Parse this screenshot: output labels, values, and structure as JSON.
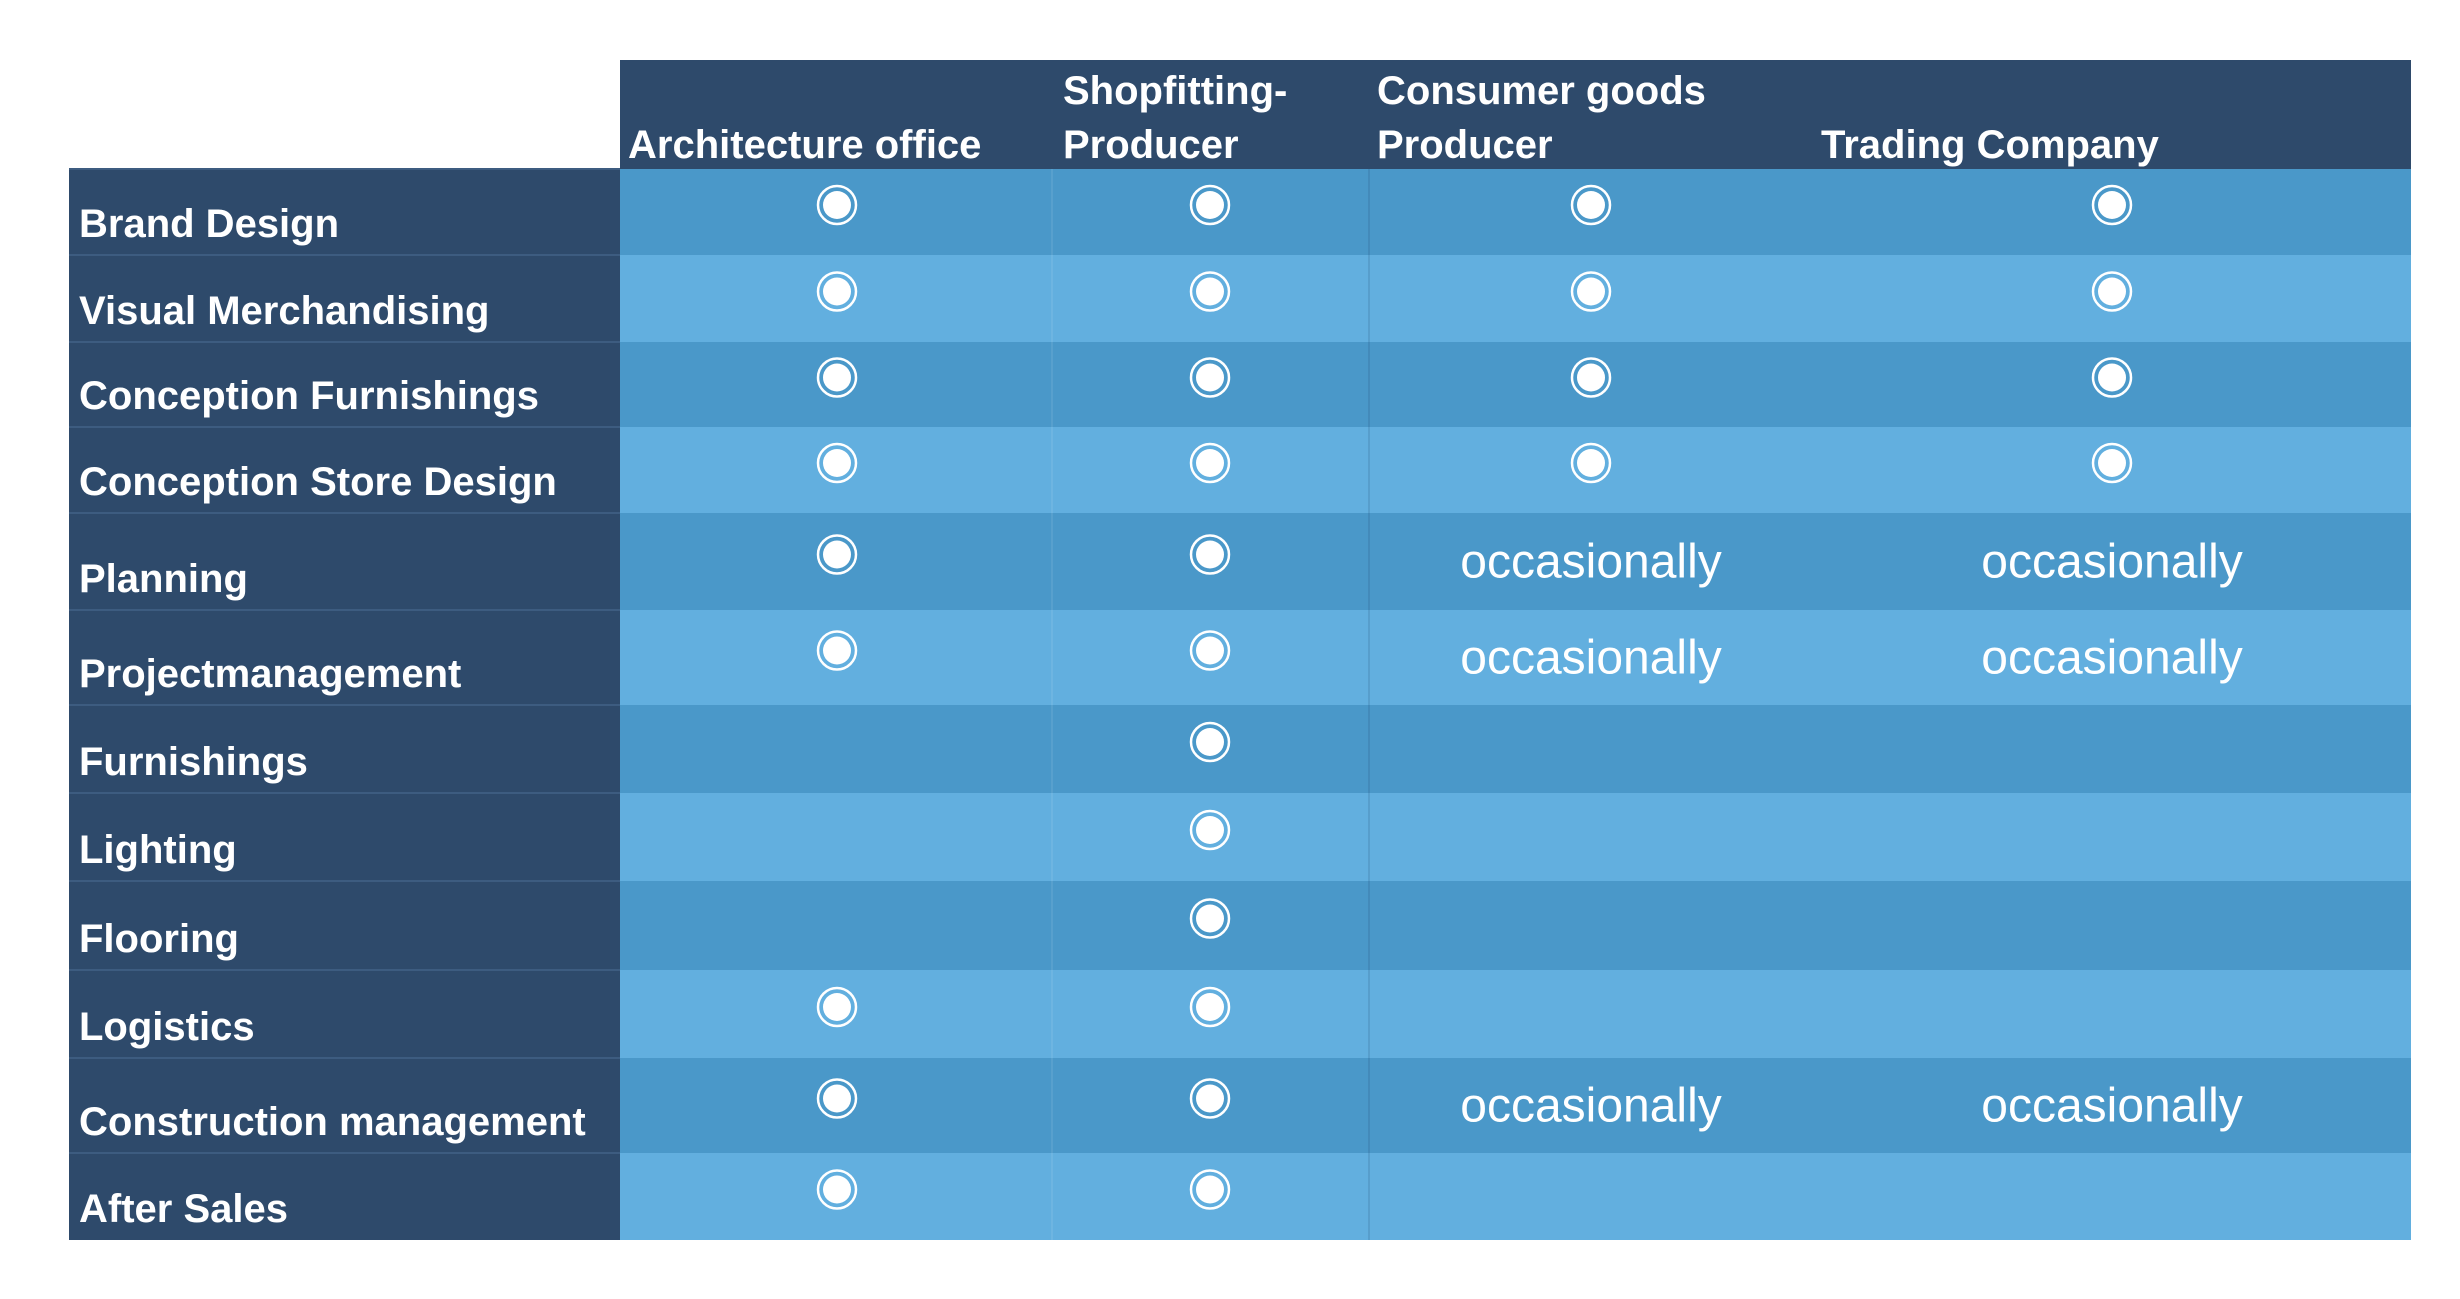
{
  "table": {
    "columns": [
      [
        "Architecture office"
      ],
      [
        "Shopfitting-",
        "Producer"
      ],
      [
        "Consumer goods",
        "Producer"
      ],
      [
        "Trading Company"
      ]
    ],
    "rows": [
      {
        "label": "Brand Design",
        "cells": [
          true,
          true,
          true,
          true
        ]
      },
      {
        "label": "Visual Merchandising",
        "cells": [
          true,
          true,
          true,
          true
        ]
      },
      {
        "label": "Conception Furnishings",
        "cells": [
          true,
          true,
          true,
          true
        ]
      },
      {
        "label": "Conception Store Design",
        "cells": [
          true,
          true,
          true,
          true
        ]
      },
      {
        "label": "Planning",
        "cells": [
          true,
          true,
          "occasionally",
          "occasionally"
        ]
      },
      {
        "label": "Projectmanagement",
        "cells": [
          true,
          true,
          "occasionally",
          "occasionally"
        ]
      },
      {
        "label": "Furnishings",
        "cells": [
          null,
          true,
          null,
          null
        ]
      },
      {
        "label": "Lighting",
        "cells": [
          null,
          true,
          null,
          null
        ]
      },
      {
        "label": "Flooring",
        "cells": [
          null,
          true,
          null,
          null
        ]
      },
      {
        "label": "Logistics",
        "cells": [
          true,
          true,
          null,
          null
        ]
      },
      {
        "label": "Construction management",
        "cells": [
          true,
          true,
          "occasionally",
          "occasionally"
        ]
      },
      {
        "label": "After Sales",
        "cells": [
          true,
          true,
          null,
          null
        ]
      }
    ]
  }
}
